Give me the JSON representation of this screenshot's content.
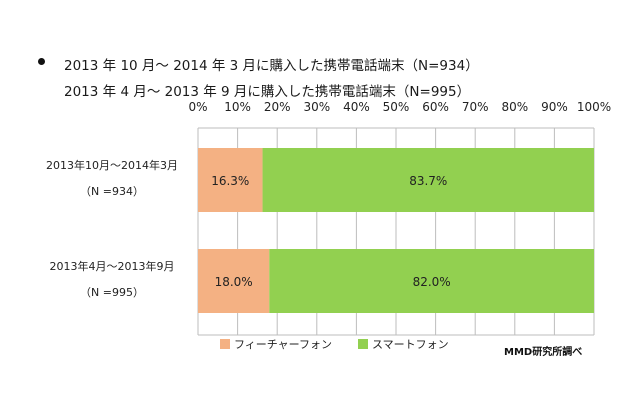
{
  "title": {
    "line1": "2013 年 10 月〜 2014 年 3 月に購入した携帯電話端末（N=934）",
    "line2": "2013 年 4 月〜 2013 年 9 月に購入した携帯電話端末（N=995）"
  },
  "credit": "MMD研究所調べ",
  "colors": {
    "feature_phone": "#f4b183",
    "smartphone": "#92d050",
    "grid": "#bdbdbd"
  },
  "chart_data": {
    "type": "bar",
    "orientation": "horizontal",
    "stacked": true,
    "categories": [
      {
        "label": "2013年10月〜2014年3月",
        "n": "（N =934）"
      },
      {
        "label": "2013年4月〜2013年9月",
        "n": "（N =995）"
      }
    ],
    "series": [
      {
        "name": "フィーチャーフォン",
        "values": [
          16.3,
          18.0
        ],
        "labels": [
          "16.3%",
          "18.0%"
        ],
        "color": "#f4b183"
      },
      {
        "name": "スマートフォン",
        "values": [
          83.7,
          82.0
        ],
        "labels": [
          "83.7%",
          "82.0%"
        ],
        "color": "#92d050"
      }
    ],
    "xlim": [
      0,
      100
    ],
    "xticks": [
      "0%",
      "10%",
      "20%",
      "30%",
      "40%",
      "50%",
      "60%",
      "70%",
      "80%",
      "90%",
      "100%"
    ],
    "grid": true,
    "legend": "bottom"
  }
}
